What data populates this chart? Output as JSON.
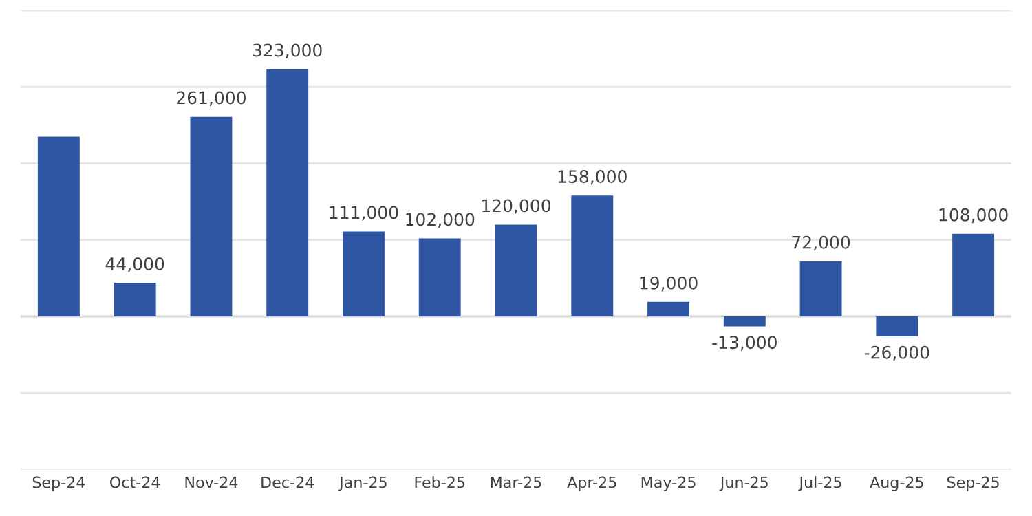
{
  "chart_data": {
    "type": "bar",
    "categories": [
      "Sep-24",
      "Oct-24",
      "Nov-24",
      "Dec-24",
      "Jan-25",
      "Feb-25",
      "Mar-25",
      "Apr-25",
      "May-25",
      "Jun-25",
      "Jul-25",
      "Aug-25",
      "Sep-25"
    ],
    "values": [
      235000,
      44000,
      261000,
      323000,
      111000,
      102000,
      120000,
      158000,
      19000,
      -13000,
      72000,
      -26000,
      108000
    ],
    "value_labels": [
      null,
      "44,000",
      "261,000",
      "323,000",
      "111,000",
      "102,000",
      "120,000",
      "158,000",
      "19,000",
      "-13,000",
      "72,000",
      "-26,000",
      "108,000"
    ],
    "color": "#2e55a2",
    "ylim": [
      -200000,
      400000
    ],
    "yticks": [
      {
        "value": -200000,
        "label": null
      },
      {
        "value": -100000,
        "label": null
      },
      {
        "value": 0,
        "label": null
      },
      {
        "value": 100000,
        "label": null
      },
      {
        "value": 200000,
        "label": null
      },
      {
        "value": 300000,
        "label": null
      },
      {
        "value": 400000,
        "label": null
      }
    ],
    "grid": "y",
    "tick_labels": "x"
  }
}
